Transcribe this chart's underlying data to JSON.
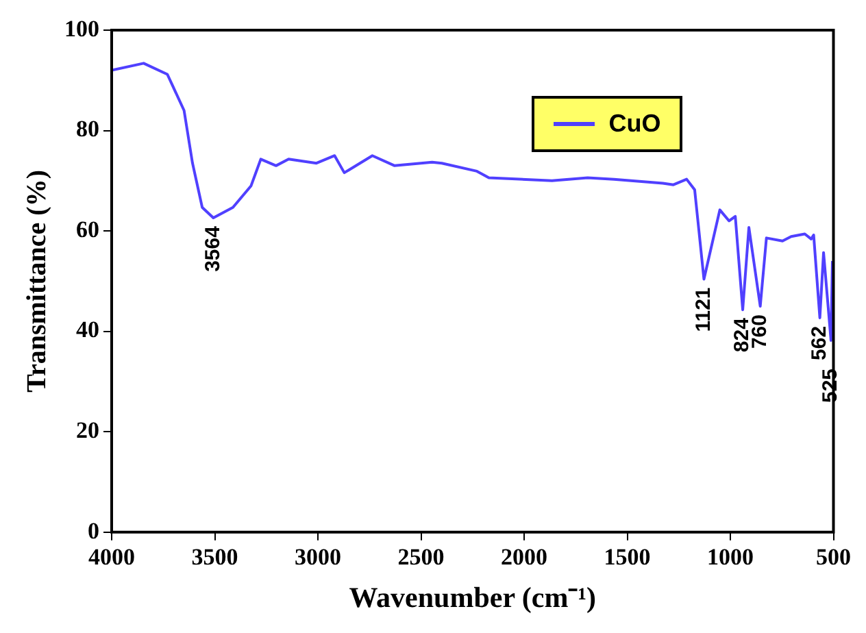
{
  "chart_data": {
    "type": "line",
    "xlabel": "Wavenumber (cm⁻¹)",
    "ylabel": "Transmittance (%)",
    "xlim": [
      4000,
      500
    ],
    "xticks": [
      4000,
      3500,
      3000,
      2500,
      2000,
      1500,
      1000,
      500
    ],
    "ylim": [
      0,
      100
    ],
    "yticks": [
      0,
      20,
      40,
      60,
      80,
      100
    ],
    "grid": false,
    "legend": "top right",
    "marker": "none",
    "line_style": "solid",
    "series": [
      {
        "name": "CuO",
        "color": "#5040ff",
        "x": [
          4000,
          3845,
          3730,
          3649,
          3608,
          3561,
          3507,
          3412,
          3324,
          3277,
          3203,
          3142,
          3007,
          2919,
          2872,
          2736,
          2628,
          2446,
          2399,
          2229,
          2171,
          1865,
          1692,
          1564,
          1327,
          1276,
          1212,
          1173,
          1128,
          1051,
          1006,
          976,
          940,
          910,
          855,
          825,
          747,
          705,
          639,
          608,
          596,
          566,
          548,
          512,
          505
        ],
        "values": [
          92,
          93.4,
          91.2,
          84,
          73.5,
          64.7,
          62.6,
          64.7,
          69,
          74.3,
          73,
          74.3,
          73.5,
          75,
          71.6,
          75,
          73,
          73.7,
          73.5,
          71.9,
          70.6,
          70,
          70.6,
          70.3,
          69.5,
          69.2,
          70.3,
          68.2,
          50.4,
          64.2,
          62,
          62.9,
          44.3,
          60.7,
          45,
          58.6,
          58,
          58.9,
          59.4,
          58.4,
          59.2,
          42.7,
          55.7,
          38.2,
          54
        ]
      }
    ],
    "annotations": [
      {
        "text": "3564",
        "x": 3507,
        "y": 62.6
      },
      {
        "text": "1121",
        "x": 1128,
        "y": 50.4
      },
      {
        "text": "824",
        "x": 940,
        "y": 44.3
      },
      {
        "text": "760",
        "x": 855,
        "y": 45
      },
      {
        "text": "562",
        "x": 566,
        "y": 42.7
      },
      {
        "text": "525",
        "x": 512,
        "y": 38.2
      }
    ]
  }
}
